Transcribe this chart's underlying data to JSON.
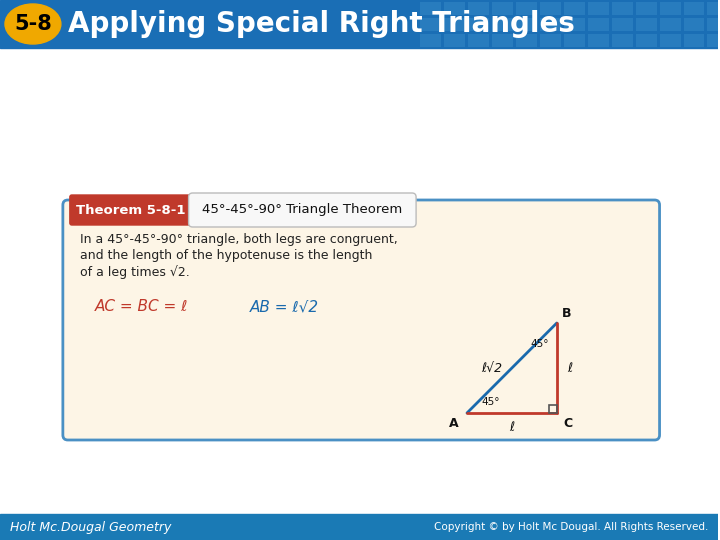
{
  "title_text": "Applying Special Right Triangles",
  "title_number": "5-8",
  "header_bg_color": "#1a6eb5",
  "header_grid_color": "#4a9fd4",
  "title_number_bg": "#f0a800",
  "title_number_color": "#000000",
  "title_text_color": "#ffffff",
  "theorem_label": "Theorem 5-8-1",
  "theorem_label_bg": "#c0392b",
  "theorem_label_color": "#ffffff",
  "theorem_title": "45°-45°-90° Triangle Theorem",
  "theorem_title_color": "#111111",
  "card_bg": "#fdf5e6",
  "card_border": "#4a90c4",
  "body_text_line1": "In a 45°-45°-90° triangle, both legs are congruent,",
  "body_text_line2": "and the length of the hypotenuse is the length",
  "body_text_line3": "of a leg times √2.",
  "eq1_text": "AC = BC = ℓ",
  "eq2_text": "AB = ℓ√2",
  "eq_color": "#c0392b",
  "eq_blue_color": "#1a6aad",
  "footer_bg": "#1a7ab5",
  "footer_text_left": "Holt Mc.Dougal Geometry",
  "footer_text_right": "Copyright © by Holt Mc Dougal. All Rights Reserved.",
  "footer_text_color": "#ffffff",
  "main_bg": "#ffffff",
  "triangle_color_hyp": "#1a6aad",
  "triangle_color_legs": "#c0392b",
  "label_A": "A",
  "label_B": "B",
  "label_C": "C",
  "angle_A": "45°",
  "angle_B": "45°",
  "side_AC": "ℓ",
  "side_BC": "ℓ",
  "side_AB": "ℓ√2"
}
